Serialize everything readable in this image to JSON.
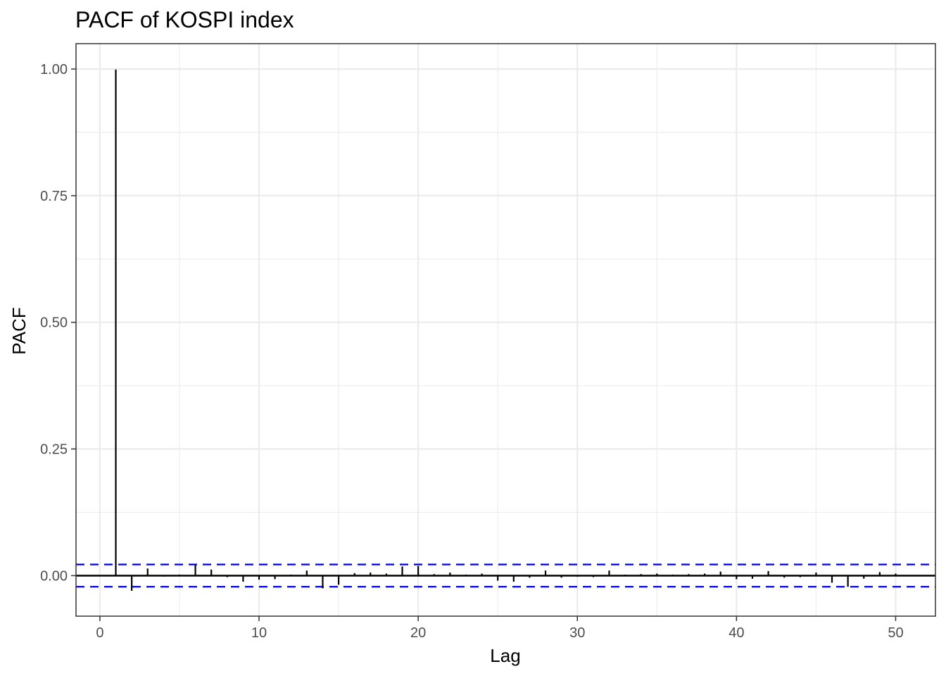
{
  "chart_data": {
    "type": "bar",
    "title": "PACF of KOSPI index",
    "xlabel": "Lag",
    "ylabel": "PACF",
    "xlim": [
      -1.5,
      52.5
    ],
    "ylim": [
      -0.08,
      1.05
    ],
    "x_ticks": [
      0,
      10,
      20,
      30,
      40,
      50
    ],
    "x_tick_labels": [
      "0",
      "10",
      "20",
      "30",
      "40",
      "50"
    ],
    "y_ticks": [
      0,
      0.25,
      0.5,
      0.75,
      1.0
    ],
    "y_tick_labels": [
      "0.00",
      "0.25",
      "0.50",
      "0.75",
      "1.00"
    ],
    "grid": true,
    "confidence_bound": 0.022,
    "confidence_color": "#0000ee",
    "series": [
      {
        "lags": [
          1,
          2,
          3,
          4,
          5,
          6,
          7,
          8,
          9,
          10,
          11,
          12,
          13,
          14,
          15,
          16,
          17,
          18,
          19,
          20,
          21,
          22,
          23,
          24,
          25,
          26,
          27,
          28,
          29,
          30,
          31,
          32,
          33,
          34,
          35,
          36,
          37,
          38,
          39,
          40,
          41,
          42,
          43,
          44,
          45,
          46,
          47,
          48,
          49,
          50
        ],
        "values": [
          0.999,
          -0.03,
          0.014,
          -0.002,
          0.002,
          0.021,
          0.012,
          -0.003,
          -0.012,
          -0.008,
          -0.007,
          0.002,
          0.01,
          -0.025,
          -0.018,
          0.005,
          0.006,
          0.004,
          0.018,
          0.019,
          0.003,
          0.006,
          0.002,
          0.004,
          -0.01,
          -0.012,
          -0.004,
          0.01,
          -0.004,
          -0.002,
          -0.003,
          0.01,
          0.002,
          0.003,
          0.004,
          0.002,
          0.003,
          0.004,
          0.008,
          -0.007,
          -0.006,
          0.009,
          -0.004,
          -0.003,
          0.006,
          -0.014,
          -0.022,
          -0.006,
          0.007,
          0.004
        ]
      }
    ]
  }
}
